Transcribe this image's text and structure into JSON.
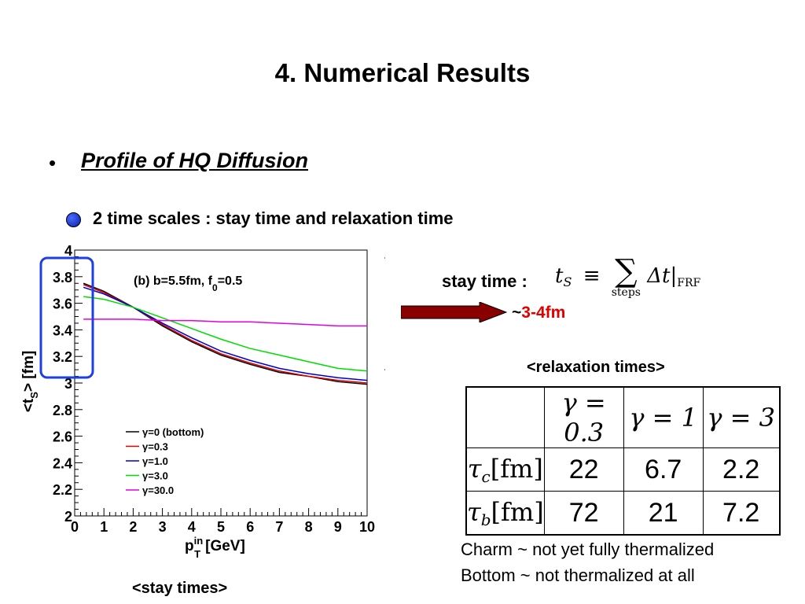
{
  "title": "4. Numerical Results",
  "bullet": "•",
  "section": "Profile of HQ Diffusion",
  "subtitle": "2 time scales  : stay time and relaxation time",
  "stay_time": {
    "label": "stay time :",
    "formula": {
      "lhs": "t",
      "lhs_sub": "S",
      "op": "≡",
      "sum": "∑",
      "sum_sub": "steps",
      "delta": "Δt",
      "bar": "|",
      "frame": "FRF"
    },
    "approx_prefix": "~",
    "approx_value": "3-4fm",
    "approx_color": "#e00000"
  },
  "chart_data": {
    "type": "line",
    "annotation": "(b) b=5.5fm, f",
    "annotation_sub": "0",
    "annotation_suffix": "=0.5",
    "xlabel": "p",
    "xlabel_sup": "in",
    "xlabel_sub": "T",
    "xlabel_unit": "[GeV]",
    "ylabel": "<t",
    "ylabel_sub": "S",
    "ylabel_suffix": "> [fm]",
    "xlim": [
      0,
      10
    ],
    "ylim": [
      2,
      4
    ],
    "xticks": [
      "0",
      "1",
      "2",
      "3",
      "4",
      "5",
      "6",
      "7",
      "8",
      "9",
      "10"
    ],
    "yticks": [
      "2",
      "2.2",
      "2.4",
      "2.6",
      "2.8",
      "3",
      "3.2",
      "3.4",
      "3.6",
      "3.8",
      "4"
    ],
    "highlight_color": "#1f3fe0",
    "x": [
      0.3,
      1,
      2,
      3,
      4,
      5,
      6,
      7,
      8,
      9,
      10
    ],
    "series": [
      {
        "name": "γ=0 (bottom)",
        "color": "#000000",
        "values": [
          3.75,
          3.69,
          3.57,
          3.43,
          3.31,
          3.21,
          3.14,
          3.08,
          3.05,
          3.01,
          2.99
        ]
      },
      {
        "name": "γ=0.3",
        "color": "#e00000",
        "values": [
          3.74,
          3.68,
          3.57,
          3.44,
          3.32,
          3.22,
          3.15,
          3.09,
          3.05,
          3.02,
          3.0
        ]
      },
      {
        "name": "γ=1.0",
        "color": "#0000cc",
        "values": [
          3.72,
          3.67,
          3.57,
          3.45,
          3.34,
          3.24,
          3.17,
          3.11,
          3.07,
          3.04,
          3.02
        ]
      },
      {
        "name": "γ=3.0",
        "color": "#00dd00",
        "values": [
          3.65,
          3.63,
          3.57,
          3.49,
          3.41,
          3.33,
          3.26,
          3.21,
          3.16,
          3.11,
          3.09
        ]
      },
      {
        "name": "γ=30.0",
        "color": "#e000e0",
        "values": [
          3.48,
          3.48,
          3.48,
          3.47,
          3.47,
          3.46,
          3.46,
          3.45,
          3.44,
          3.43,
          3.43
        ]
      }
    ]
  },
  "stay_caption": "<stay times>",
  "relaxation": {
    "title": "<relaxation times>",
    "columns": [
      "γ = 0.3",
      "γ = 1",
      "γ = 3"
    ],
    "rows": [
      {
        "symbol": "τ",
        "sub": "c",
        "unit": "[fm]",
        "values": [
          "22",
          "6.7",
          "2.2"
        ]
      },
      {
        "symbol": "τ",
        "sub": "b",
        "unit": "[fm]",
        "values": [
          "72",
          "21",
          "7.2"
        ]
      }
    ]
  },
  "notes": [
    "Charm ~ not yet fully thermalized",
    "Bottom ~ not thermalized at all"
  ]
}
